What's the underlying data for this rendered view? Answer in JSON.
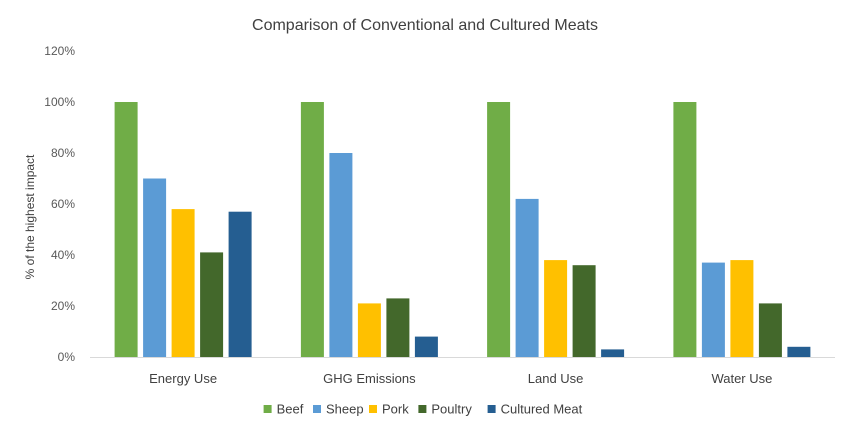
{
  "chart_data": {
    "type": "bar",
    "title": "Comparison of Conventional and Cultured Meats",
    "xlabel": "",
    "ylabel": "% of the highest impact",
    "categories": [
      "Energy Use",
      "GHG Emissions",
      "Land Use",
      "Water Use"
    ],
    "series": [
      {
        "name": "Beef",
        "color": "#70AD47",
        "values": [
          100,
          100,
          100,
          100
        ]
      },
      {
        "name": "Sheep",
        "color": "#5B9BD5",
        "values": [
          70,
          80,
          62,
          37
        ]
      },
      {
        "name": "Pork",
        "color": "#FFC000",
        "values": [
          58,
          21,
          38,
          38
        ]
      },
      {
        "name": "Poultry",
        "color": "#43682B",
        "values": [
          41,
          23,
          36,
          21
        ]
      },
      {
        "name": "Cultured Meat",
        "color": "#255E91",
        "values": [
          57,
          8,
          3,
          4
        ]
      }
    ],
    "ylim": [
      0,
      120
    ],
    "yticks": [
      0,
      20,
      40,
      60,
      80,
      100,
      120
    ],
    "ytick_labels": [
      "0%",
      "20%",
      "40%",
      "60%",
      "80%",
      "100%",
      "120%"
    ],
    "grid": false,
    "legend_position": "bottom"
  }
}
